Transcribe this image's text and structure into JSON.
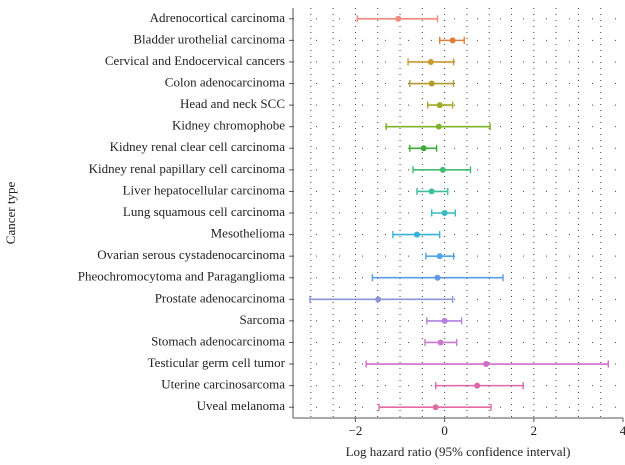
{
  "chart_data": {
    "type": "forest",
    "x_label": "Log hazard ratio (95% confidence interval)",
    "y_label": "Cancer type",
    "categories": [
      "Adrenocortical carcinoma",
      "Bladder urothelial carcinoma",
      "Cervical and Endocervical cancers",
      "Colon adenocarcinoma",
      "Head and neck SCC",
      "Kidney chromophobe",
      "Kidney renal clear cell carcinoma",
      "Kidney renal papillary cell carcinoma",
      "Liver hepatocellular carcinoma",
      "Lung squamous cell carcinoma",
      "Mesothelioma",
      "Ovarian serous cystadenocarcinoma",
      "Pheochromocytoma and Paraganglioma",
      "Prostate adenocarcinoma",
      "Sarcoma",
      "Stomach adenocarcinoma",
      "Testicular germ cell tumor",
      "Uterine carcinosarcoma",
      "Uveal melanoma"
    ],
    "values": [
      -1.04,
      0.18,
      -0.31,
      -0.29,
      -0.11,
      -0.13,
      -0.47,
      -0.04,
      -0.29,
      0,
      -0.62,
      -0.11,
      -0.16,
      -1.49,
      0,
      -0.09,
      0.93,
      0.73,
      -0.2
    ],
    "lower": [
      -1.96,
      -0.11,
      -0.82,
      -0.78,
      -0.38,
      -1.31,
      -0.78,
      -0.71,
      -0.62,
      -0.29,
      -1.16,
      -0.42,
      -1.62,
      -3.02,
      -0.4,
      -0.44,
      -1.76,
      -0.2,
      -1.47
    ],
    "upper": [
      -0.16,
      0.44,
      0.2,
      0.2,
      0.18,
      1.02,
      -0.18,
      0.58,
      0.07,
      0.24,
      -0.11,
      0.2,
      1.31,
      0.18,
      0.38,
      0.27,
      3.67,
      1.76,
      1.04
    ],
    "colors": [
      "#F08A80",
      "#E07E3C",
      "#C99A2E",
      "#B59B2C",
      "#A2A923",
      "#7FB32A",
      "#3FAA3A",
      "#43BC73",
      "#3DBF9C",
      "#32BBC0",
      "#38B1D6",
      "#4EA6E8",
      "#5E9BE6",
      "#8A95D6",
      "#B47FE0",
      "#C97ACF",
      "#D26BC8",
      "#DE65A9",
      "#E46AA3"
    ],
    "xlim": [
      -3.4,
      4
    ],
    "xticks": [
      {
        "value": -2,
        "label": "−2"
      },
      0,
      2,
      4
    ],
    "xgrid": [
      -3,
      -2.5,
      -2,
      -1.5,
      -1,
      -0.5,
      0,
      0.5,
      1,
      1.5,
      2,
      2.5,
      3,
      3.5
    ],
    "grid": true
  }
}
